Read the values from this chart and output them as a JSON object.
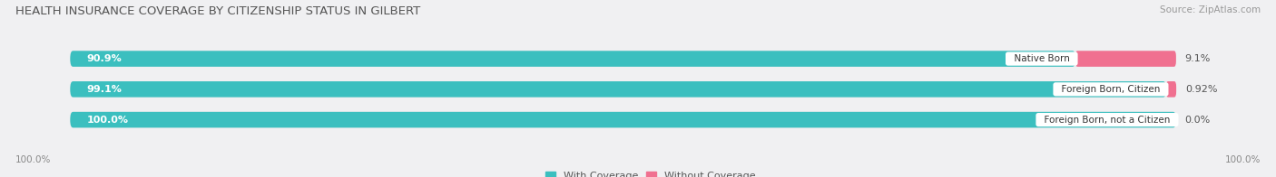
{
  "title": "HEALTH INSURANCE COVERAGE BY CITIZENSHIP STATUS IN GILBERT",
  "source": "Source: ZipAtlas.com",
  "categories": [
    "Native Born",
    "Foreign Born, Citizen",
    "Foreign Born, not a Citizen"
  ],
  "with_coverage": [
    90.9,
    99.1,
    100.0
  ],
  "without_coverage": [
    9.1,
    0.92,
    0.0
  ],
  "color_with": "#3bbfbf",
  "color_without": "#f07090",
  "color_track": "#e8e8ea",
  "bar_height": 0.52,
  "background_color": "#f0f0f2",
  "axis_label_left": "100.0%",
  "axis_label_right": "100.0%",
  "title_fontsize": 9.5,
  "source_fontsize": 7.5,
  "bar_text_fontsize": 8,
  "label_fontsize": 7.5,
  "legend_fontsize": 8
}
